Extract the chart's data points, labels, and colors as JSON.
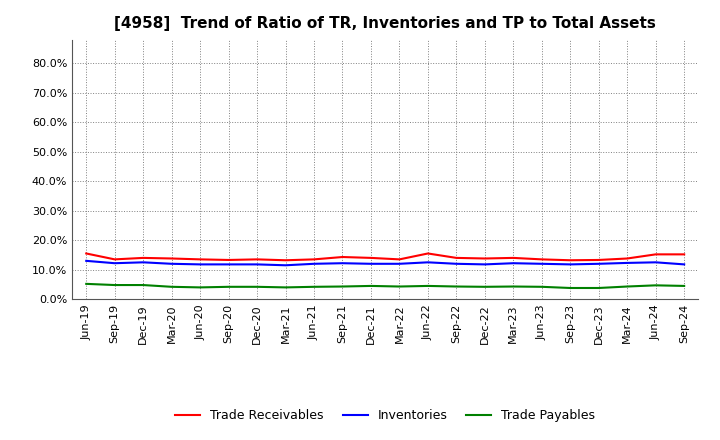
{
  "title": "[4958]  Trend of Ratio of TR, Inventories and TP to Total Assets",
  "x_labels": [
    "Jun-19",
    "Sep-19",
    "Dec-19",
    "Mar-20",
    "Jun-20",
    "Sep-20",
    "Dec-20",
    "Mar-21",
    "Jun-21",
    "Sep-21",
    "Dec-21",
    "Mar-22",
    "Jun-22",
    "Sep-22",
    "Dec-22",
    "Mar-23",
    "Jun-23",
    "Sep-23",
    "Dec-23",
    "Mar-24",
    "Jun-24",
    "Sep-24"
  ],
  "trade_receivables": [
    0.155,
    0.135,
    0.14,
    0.138,
    0.135,
    0.133,
    0.135,
    0.132,
    0.135,
    0.143,
    0.14,
    0.135,
    0.155,
    0.14,
    0.138,
    0.14,
    0.135,
    0.132,
    0.133,
    0.138,
    0.152,
    0.152
  ],
  "inventories": [
    0.13,
    0.122,
    0.125,
    0.12,
    0.118,
    0.118,
    0.118,
    0.115,
    0.12,
    0.122,
    0.12,
    0.12,
    0.125,
    0.12,
    0.118,
    0.122,
    0.12,
    0.118,
    0.12,
    0.123,
    0.125,
    0.118
  ],
  "trade_payables": [
    0.052,
    0.048,
    0.048,
    0.042,
    0.04,
    0.042,
    0.042,
    0.04,
    0.042,
    0.043,
    0.045,
    0.043,
    0.045,
    0.043,
    0.042,
    0.043,
    0.042,
    0.038,
    0.038,
    0.043,
    0.047,
    0.045
  ],
  "tr_color": "#ff0000",
  "inv_color": "#0000ff",
  "tp_color": "#008000",
  "ylim": [
    0.0,
    0.88
  ],
  "yticks": [
    0.0,
    0.1,
    0.2,
    0.3,
    0.4,
    0.5,
    0.6,
    0.7,
    0.8
  ],
  "background_color": "#ffffff",
  "plot_bg_color": "#ffffff",
  "legend_labels": [
    "Trade Receivables",
    "Inventories",
    "Trade Payables"
  ],
  "title_fontsize": 11,
  "tick_fontsize": 8,
  "legend_fontsize": 9
}
